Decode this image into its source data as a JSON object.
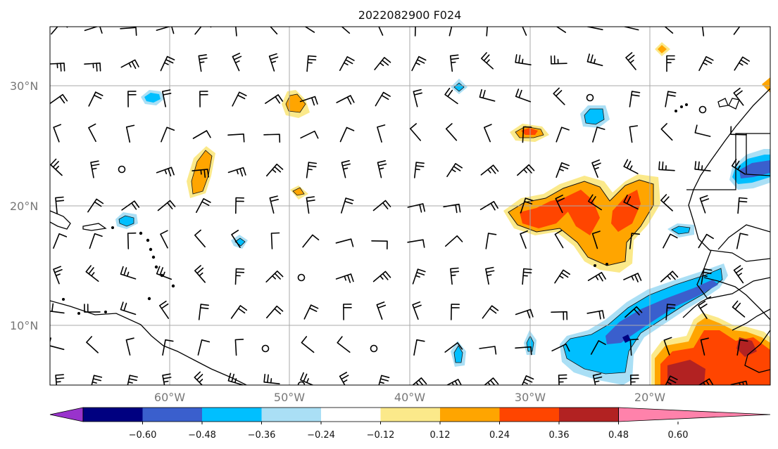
{
  "title": "2022082900 F024",
  "latitude_labels": [
    "30°N",
    "20°N",
    "10°N"
  ],
  "longitude_labels": [
    "60°W",
    "50°W",
    "40°W",
    "30°W",
    "20°W"
  ],
  "colorbar": {
    "tick_labels": [
      "−0.60",
      "−0.48",
      "−0.36",
      "−0.24",
      "−0.12",
      "0.12",
      "0.24",
      "0.36",
      "0.48",
      "0.60"
    ],
    "colors": [
      "#9933cc",
      "#000080",
      "#3a5fcd",
      "#00bfff",
      "#aadff5",
      "#ffffff",
      "#fbe98a",
      "#ffa500",
      "#ff4500",
      "#b22222",
      "#ff82ab"
    ]
  },
  "map": {
    "projection": "PlateCarree",
    "lon_range": [
      -70,
      -10
    ],
    "lat_range": [
      5,
      35
    ],
    "gridlines": true,
    "wind_barbs": true,
    "coastlines": true
  }
}
